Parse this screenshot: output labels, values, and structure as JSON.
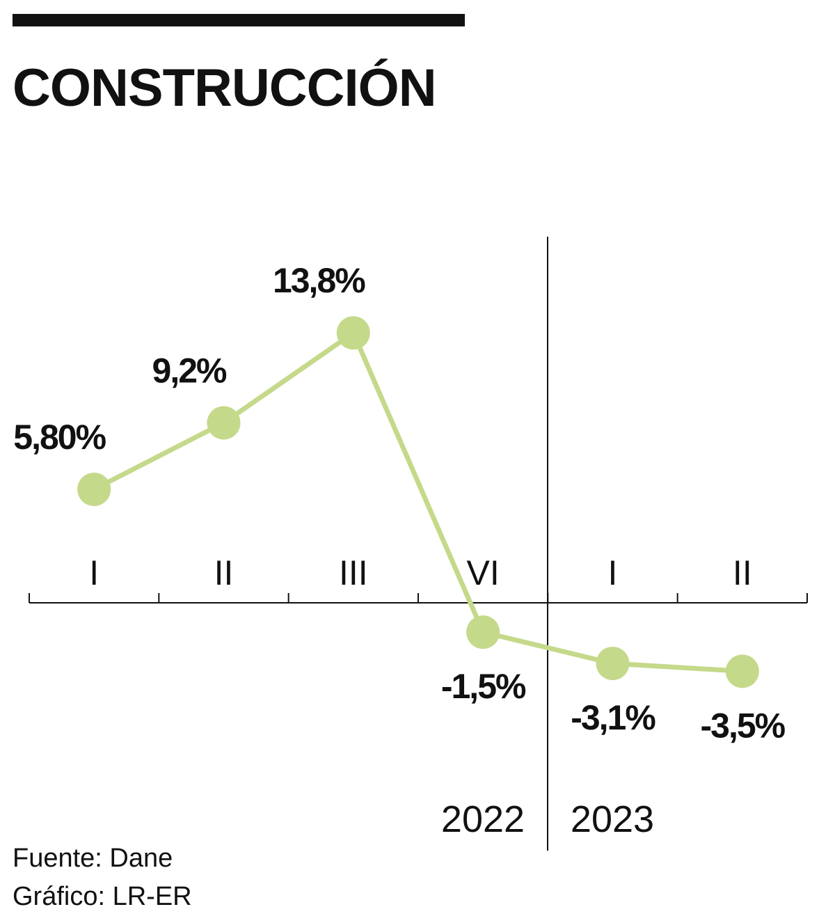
{
  "chart_data": {
    "type": "line",
    "title": "CONSTRUCCIÓN",
    "categories": [
      "I",
      "II",
      "III",
      "VI",
      "I",
      "II"
    ],
    "series": [
      {
        "color": "#c5d98a",
        "values": [
          5.8,
          9.2,
          13.8,
          -1.5,
          -3.1,
          -3.5
        ],
        "value_labels": [
          "5,80%",
          "9,2%",
          "13,8%",
          "-1,5%",
          "-3,1%",
          "-3,5%"
        ]
      }
    ],
    "ylim": [
      -10,
      20
    ],
    "year_labels": [
      "2022",
      "2023"
    ],
    "source": "Fuente: Dane",
    "credit": "Gráfico: LR-ER"
  }
}
